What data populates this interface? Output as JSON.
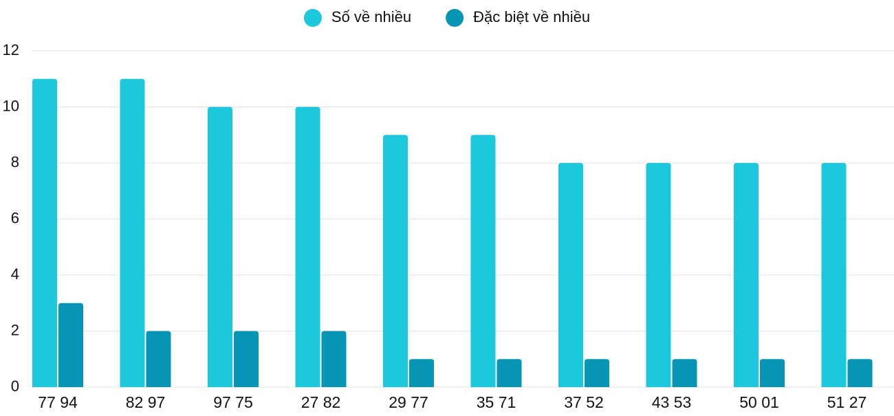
{
  "chart_data": {
    "type": "bar",
    "categories": [
      "77 94",
      "82 97",
      "97 75",
      "27 82",
      "29 77",
      "35 71",
      "37 52",
      "43 53",
      "50 01",
      "51 27"
    ],
    "series": [
      {
        "name": "Số về nhiều",
        "color": "#1bc8dc",
        "values": [
          11,
          11,
          10,
          10,
          9,
          9,
          8,
          8,
          8,
          8
        ]
      },
      {
        "name": "Đặc biệt về nhiều",
        "color": "#0795b6",
        "values": [
          3,
          2,
          2,
          2,
          1,
          1,
          1,
          1,
          1,
          1
        ]
      }
    ],
    "ylim": [
      0,
      12
    ],
    "yticks": [
      0,
      2,
      4,
      6,
      8,
      10,
      12
    ],
    "grid": true,
    "legend": "top"
  }
}
